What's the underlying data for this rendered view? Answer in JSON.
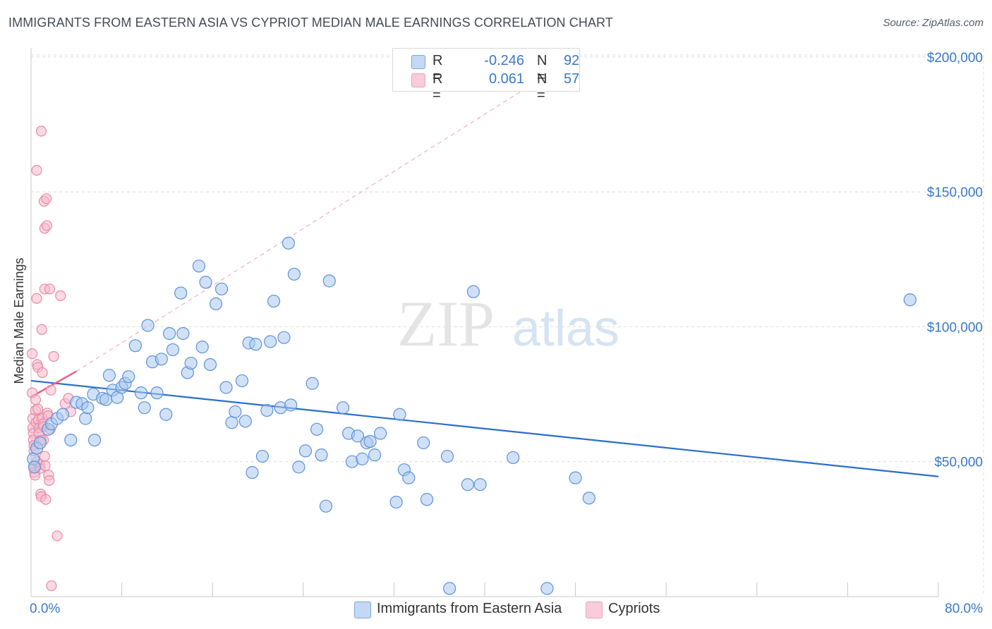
{
  "title": "IMMIGRANTS FROM EASTERN ASIA VS CYPRIOT MEDIAN MALE EARNINGS CORRELATION CHART",
  "source": "Source: ZipAtlas.com",
  "watermark": {
    "zip": "ZIP",
    "atlas": "atlas"
  },
  "legend": {
    "rows": [
      {
        "r_label": "R =",
        "r_value": "-0.246",
        "n_label": "N =",
        "n_value": "92"
      },
      {
        "r_label": "R =",
        "r_value": "0.061",
        "n_label": "N =",
        "n_value": "57"
      }
    ]
  },
  "bottom_legend": [
    {
      "label": "Immigrants from Eastern Asia"
    },
    {
      "label": "Cypriots"
    }
  ],
  "colors": {
    "blue_fill": "#a9c8f0",
    "blue_stroke": "#5d93d6",
    "blue_line": "#2a6dcc",
    "pink_fill": "#f7b9cc",
    "pink_stroke": "#e88aa6",
    "pink_line": "#e8608a",
    "axis_label": "#3a78c9",
    "grid": "#dcdcdc"
  },
  "chart_data": {
    "type": "scatter",
    "title": "IMMIGRANTS FROM EASTERN ASIA VS CYPRIOT MEDIAN MALE EARNINGS CORRELATION CHART",
    "xlabel": "",
    "ylabel": "Median Male Earnings",
    "xlim": [
      0,
      80
    ],
    "ylim": [
      0,
      205000
    ],
    "x_tick_labels": [
      {
        "value": 0,
        "label": "0.0%"
      },
      {
        "value": 80,
        "label": "80.0%"
      }
    ],
    "y_ticks": [
      {
        "value": 50000,
        "label": "$50,000"
      },
      {
        "value": 100000,
        "label": "$100,000"
      },
      {
        "value": 150000,
        "label": "$150,000"
      },
      {
        "value": 200000,
        "label": "$200,000"
      }
    ],
    "grid": true,
    "legend_position": "top-center",
    "series": [
      {
        "name": "Immigrants from Eastern Asia",
        "color": "#5d93d6",
        "r": -0.246,
        "n": 92,
        "trend": {
          "x": [
            0,
            80
          ],
          "y": [
            80000,
            44500
          ],
          "style": "solid"
        },
        "points": [
          [
            0.2,
            51000
          ],
          [
            0.3,
            48000
          ],
          [
            0.5,
            55000
          ],
          [
            0.8,
            57000
          ],
          [
            1.5,
            62000
          ],
          [
            1.8,
            64000
          ],
          [
            2.3,
            66000
          ],
          [
            2.8,
            67500
          ],
          [
            3.5,
            58000
          ],
          [
            4,
            72000
          ],
          [
            4.5,
            71500
          ],
          [
            4.8,
            66000
          ],
          [
            5,
            70000
          ],
          [
            5.5,
            75000
          ],
          [
            5.6,
            58000
          ],
          [
            6.3,
            73500
          ],
          [
            6.6,
            73000
          ],
          [
            6.9,
            82000
          ],
          [
            7.2,
            76500
          ],
          [
            7.6,
            73800
          ],
          [
            8,
            77500
          ],
          [
            8.3,
            79000
          ],
          [
            8.6,
            81500
          ],
          [
            9.2,
            93000
          ],
          [
            9.7,
            75500
          ],
          [
            10,
            70000
          ],
          [
            10.3,
            100500
          ],
          [
            10.7,
            87000
          ],
          [
            11.1,
            75500
          ],
          [
            11.5,
            88000
          ],
          [
            11.9,
            67500
          ],
          [
            12.2,
            97500
          ],
          [
            12.5,
            91500
          ],
          [
            13.2,
            112500
          ],
          [
            13.4,
            97500
          ],
          [
            13.8,
            83000
          ],
          [
            14.1,
            86500
          ],
          [
            14.8,
            122500
          ],
          [
            15.1,
            92500
          ],
          [
            15.4,
            116500
          ],
          [
            15.8,
            86000
          ],
          [
            16.3,
            108500
          ],
          [
            16.8,
            114000
          ],
          [
            17.2,
            77500
          ],
          [
            17.7,
            64500
          ],
          [
            18,
            68500
          ],
          [
            18.6,
            80000
          ],
          [
            18.9,
            65000
          ],
          [
            19.2,
            94000
          ],
          [
            19.5,
            46000
          ],
          [
            19.8,
            93500
          ],
          [
            20.4,
            52000
          ],
          [
            20.8,
            69000
          ],
          [
            21.1,
            94500
          ],
          [
            21.4,
            109500
          ],
          [
            22,
            70000
          ],
          [
            22.3,
            96000
          ],
          [
            22.7,
            131000
          ],
          [
            22.9,
            71000
          ],
          [
            23.2,
            119500
          ],
          [
            23.6,
            48000
          ],
          [
            24.2,
            54000
          ],
          [
            24.8,
            79000
          ],
          [
            25.2,
            62000
          ],
          [
            25.6,
            52500
          ],
          [
            26,
            33500
          ],
          [
            26.3,
            117000
          ],
          [
            27.5,
            70000
          ],
          [
            28,
            60500
          ],
          [
            28.3,
            50000
          ],
          [
            28.8,
            59500
          ],
          [
            29.2,
            51000
          ],
          [
            29.6,
            57000
          ],
          [
            29.9,
            57500
          ],
          [
            30.3,
            52500
          ],
          [
            30.8,
            60500
          ],
          [
            32.2,
            35000
          ],
          [
            32.5,
            67500
          ],
          [
            32.9,
            47000
          ],
          [
            33.3,
            44000
          ],
          [
            34.6,
            57000
          ],
          [
            34.9,
            36000
          ],
          [
            36.7,
            52000
          ],
          [
            36.9,
            3000
          ],
          [
            38.5,
            41500
          ],
          [
            39,
            113000
          ],
          [
            39.6,
            41500
          ],
          [
            42.5,
            51500
          ],
          [
            45.5,
            3000
          ],
          [
            48,
            44000
          ],
          [
            49.2,
            36500
          ],
          [
            77.5,
            110000
          ]
        ]
      },
      {
        "name": "Cypriots",
        "color": "#e88aa6",
        "r": 0.061,
        "n": 57,
        "trend": {
          "x": [
            0,
            4
          ],
          "y": [
            74000,
            83500
          ],
          "style": "solid",
          "extension": {
            "x": [
              4,
              45
            ],
            "y": [
              83500,
              192000
            ],
            "style": "dashed"
          }
        },
        "points": [
          [
            0.1,
            90000
          ],
          [
            0.1,
            75500
          ],
          [
            0.15,
            66000
          ],
          [
            0.15,
            62500
          ],
          [
            0.2,
            60500
          ],
          [
            0.2,
            58000
          ],
          [
            0.25,
            56000
          ],
          [
            0.25,
            54000
          ],
          [
            0.3,
            48000
          ],
          [
            0.3,
            46000
          ],
          [
            0.35,
            45000
          ],
          [
            0.4,
            73000
          ],
          [
            0.4,
            69000
          ],
          [
            0.45,
            64500
          ],
          [
            0.5,
            110500
          ],
          [
            0.5,
            158000
          ],
          [
            0.55,
            86000
          ],
          [
            0.6,
            85000
          ],
          [
            0.6,
            69500
          ],
          [
            0.65,
            65500
          ],
          [
            0.7,
            62500
          ],
          [
            0.7,
            60500
          ],
          [
            0.75,
            49000
          ],
          [
            0.8,
            47500
          ],
          [
            0.85,
            38000
          ],
          [
            0.9,
            37000
          ],
          [
            0.9,
            172500
          ],
          [
            0.95,
            99000
          ],
          [
            1,
            83000
          ],
          [
            1,
            66000
          ],
          [
            1.05,
            64000
          ],
          [
            1.1,
            63000
          ],
          [
            1.1,
            58000
          ],
          [
            1.15,
            146500
          ],
          [
            1.2,
            136500
          ],
          [
            1.2,
            114000
          ],
          [
            1.25,
            48500
          ],
          [
            1.3,
            36000
          ],
          [
            1.35,
            147500
          ],
          [
            1.4,
            137500
          ],
          [
            1.45,
            68000
          ],
          [
            1.5,
            67000
          ],
          [
            1.55,
            45000
          ],
          [
            1.6,
            43000
          ],
          [
            1.65,
            114000
          ],
          [
            1.7,
            62000
          ],
          [
            1.75,
            76500
          ],
          [
            1.8,
            4000
          ],
          [
            2,
            89000
          ],
          [
            2.3,
            22500
          ],
          [
            2.6,
            111500
          ],
          [
            3,
            71500
          ],
          [
            3.3,
            73500
          ],
          [
            3.5,
            68500
          ],
          [
            0.5,
            50000
          ],
          [
            0.9,
            58000
          ],
          [
            1.2,
            52000
          ]
        ]
      }
    ]
  }
}
